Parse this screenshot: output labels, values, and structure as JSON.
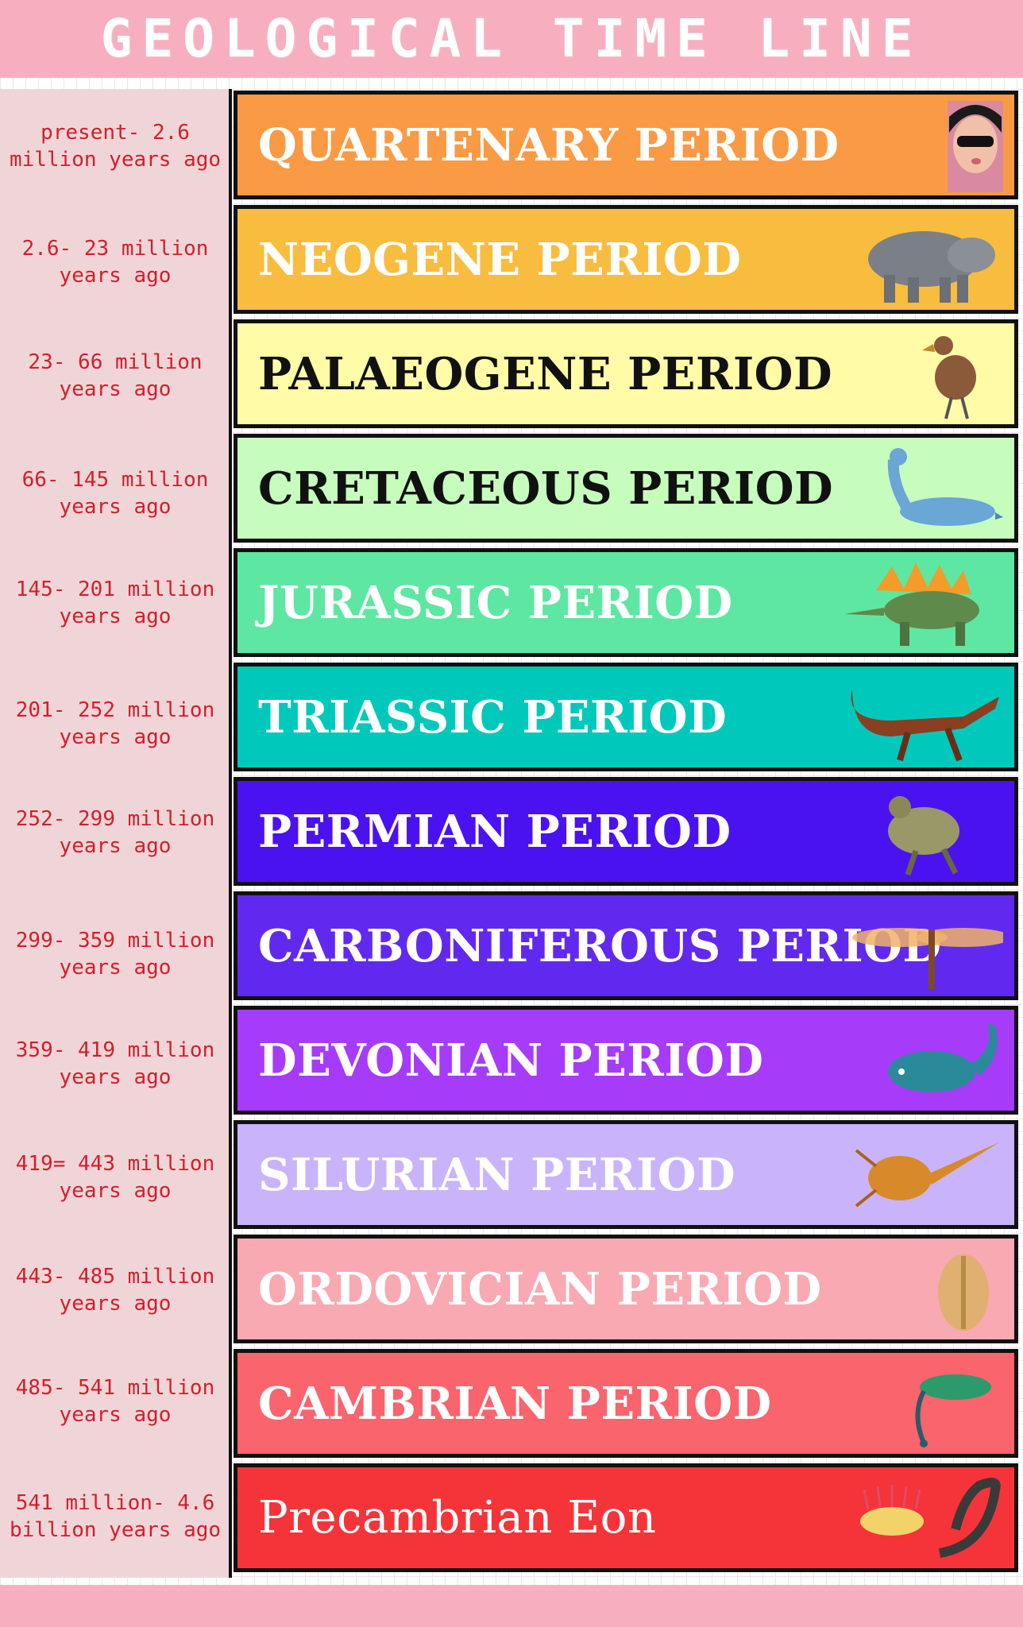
{
  "header": {
    "title": "GEOLOGICAL TIME LINE"
  },
  "periods": [
    {
      "age": "present- 2.6 million years ago",
      "name": "QUARTENARY PERIOD",
      "bg": "#fa9a44",
      "text_color": "#ffffff",
      "icon": "person-selfie-icon"
    },
    {
      "age": "2.6- 23 million years ago",
      "name": "NEOGENE PERIOD",
      "bg": "#f8bd3f",
      "text_color": "#ffffff",
      "icon": "hippo-like-mammal-icon"
    },
    {
      "age": "23- 66 million years ago",
      "name": "PALAEOGENE PERIOD",
      "bg": "#fffba7",
      "text_color": "#111111",
      "icon": "terror-bird-icon"
    },
    {
      "age": "66- 145 million years ago",
      "name": "CRETACEOUS PERIOD",
      "bg": "#c6fdbd",
      "text_color": "#111111",
      "icon": "plesiosaur-icon"
    },
    {
      "age": "145- 201 million years ago",
      "name": "JURASSIC PERIOD",
      "bg": "#5ee7a2",
      "text_color": "#ffffff",
      "icon": "stegosaurus-icon"
    },
    {
      "age": "201- 252 million years ago",
      "name": "TRIASSIC PERIOD",
      "bg": "#00c9bb",
      "text_color": "#ffffff",
      "icon": "archosaur-icon"
    },
    {
      "age": "252- 299 million years ago",
      "name": "PERMIAN PERIOD",
      "bg": "#4a12f0",
      "text_color": "#ffffff",
      "icon": "synapsid-icon"
    },
    {
      "age": "299- 359 million years ago",
      "name": "CARBONIFEROUS PERIOD",
      "bg": "#6129ef",
      "text_color": "#ffffff",
      "icon": "giant-dragonfly-icon"
    },
    {
      "age": "359- 419 million years ago",
      "name": "DEVONIAN PERIOD",
      "bg": "#a63cf9",
      "text_color": "#ffffff",
      "icon": "armored-fish-icon"
    },
    {
      "age": "419= 443 million years ago",
      "name": "SILURIAN PERIOD",
      "bg": "#c9b4fb",
      "text_color": "#ffffff",
      "icon": "sea-scorpion-icon"
    },
    {
      "age": "443- 485 million years ago",
      "name": "ORDOVICIAN PERIOD",
      "bg": "#f8a9b2",
      "text_color": "#ffffff",
      "icon": "trilobite-icon"
    },
    {
      "age": "485- 541 million years ago",
      "name": "CAMBRIAN PERIOD",
      "bg": "#f9646d",
      "text_color": "#ffffff",
      "icon": "opabinia-icon"
    },
    {
      "age": "541 million- 4.6 billion years ago",
      "name": "Precambrian Eon",
      "bg": "#f5343a",
      "text_color": "#ffffff",
      "icon": "hallucigenia-and-worm-icon"
    }
  ]
}
